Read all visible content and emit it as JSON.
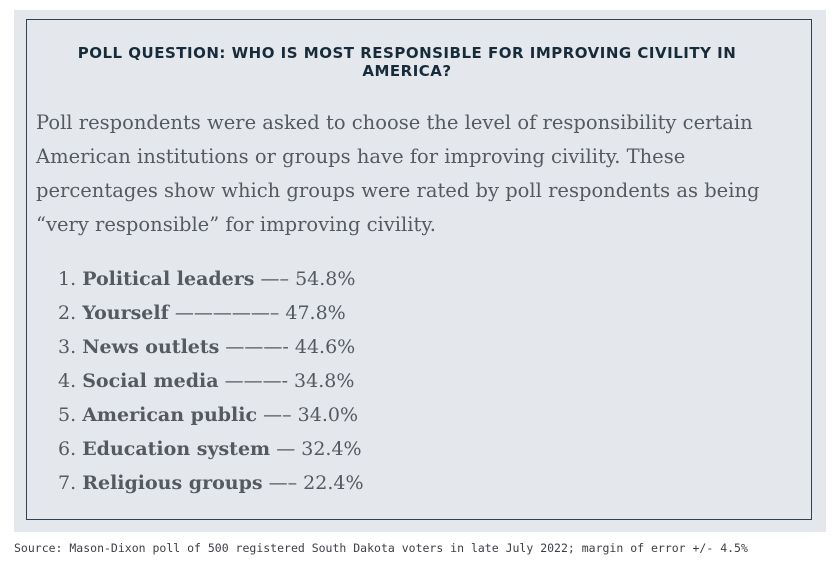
{
  "title": "POLL QUESTION: WHO IS MOST RESPONSIBLE FOR IMPROVING CIVILITY IN AMERICA?",
  "intro": "Poll respondents were asked to choose the level of responsibility certain American institutions or groups have for improving civility. These percentages show which groups were rated by poll respondents as being “very responsible” for improving civility.",
  "results": [
    {
      "num": "1.",
      "group": "Political leaders",
      "dash": " —– ",
      "value": "54.8%"
    },
    {
      "num": "2.",
      "group": "Yourself",
      "dash": " —————– ",
      "value": "47.8%"
    },
    {
      "num": "3.",
      "group": "News outlets",
      "dash": " ———- ",
      "value": "44.6%"
    },
    {
      "num": "4.",
      "group": "Social media",
      "dash": " ———- ",
      "value": "34.8%"
    },
    {
      "num": "5.",
      "group": "American public",
      "dash": " —– ",
      "value": "34.0%"
    },
    {
      "num": "6.",
      "group": "Education system",
      "dash": " — ",
      "value": "32.4%"
    },
    {
      "num": "7.",
      "group": "Religious groups",
      "dash": " —– ",
      "value": "22.4%"
    }
  ],
  "source": "Source: Mason-Dixon poll of 500 registered South Dakota voters in late July 2022; margin of error +/- 4.5%",
  "colors": {
    "panel_background": "#e4e8ec",
    "panel_border": "#2f4254",
    "title_text": "#172b3b",
    "body_text": "#555a60"
  }
}
